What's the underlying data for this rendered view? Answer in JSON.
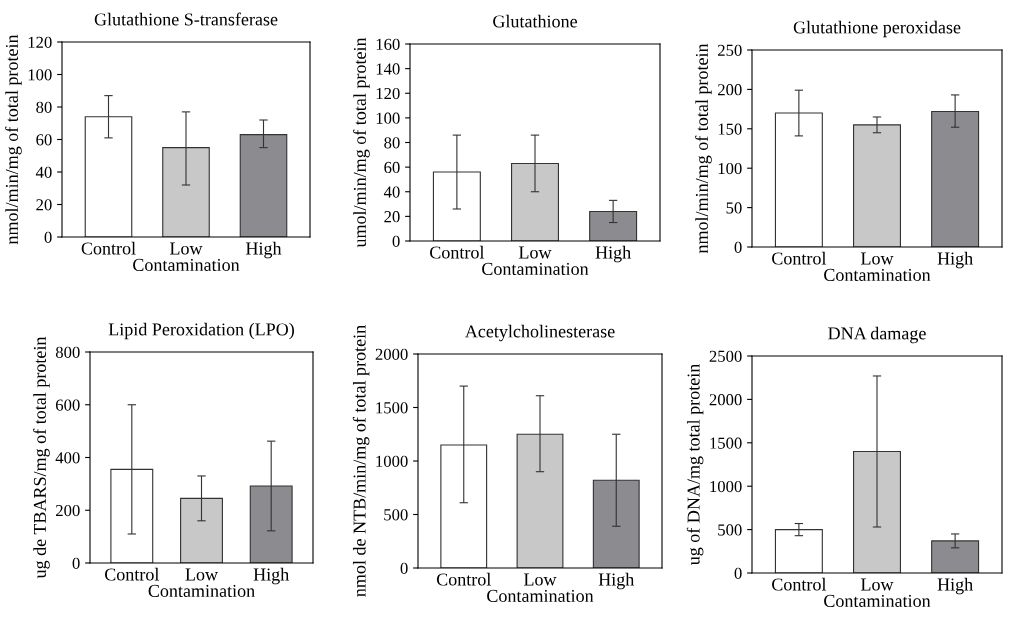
{
  "chart_data": [
    {
      "type": "bar",
      "title": "Glutathione S-transferase",
      "xlabel": "Contamination",
      "ylabel": "nmol/min/mg of total protein",
      "categories": [
        "Control",
        "Low",
        "High"
      ],
      "values": [
        74,
        55,
        63
      ],
      "colors": [
        "#ffffff",
        "#c8c8c8",
        "#8c8c90"
      ],
      "errors": [
        [
          61,
          87
        ],
        [
          32,
          77
        ],
        [
          55,
          72
        ]
      ],
      "ylim": [
        0,
        120
      ],
      "yticks": [
        0,
        20,
        40,
        60,
        80,
        100,
        120
      ],
      "grid": false,
      "legend": false
    },
    {
      "type": "bar",
      "title": "Glutathione",
      "xlabel": "Contamination",
      "ylabel": "umol/min/mg of total protein",
      "categories": [
        "Control",
        "Low",
        "High"
      ],
      "values": [
        56,
        63,
        24
      ],
      "colors": [
        "#ffffff",
        "#c8c8c8",
        "#8c8c90"
      ],
      "errors": [
        [
          26,
          86
        ],
        [
          40,
          86
        ],
        [
          15,
          33
        ]
      ],
      "ylim": [
        0,
        160
      ],
      "yticks": [
        0,
        20,
        40,
        60,
        80,
        100,
        120,
        140,
        160
      ],
      "grid": false,
      "legend": false
    },
    {
      "type": "bar",
      "title": "Glutathione peroxidase",
      "xlabel": "Contamination",
      "ylabel": "nmol/min/mg of total protein",
      "categories": [
        "Control",
        "Low",
        "High"
      ],
      "values": [
        170,
        155,
        172
      ],
      "colors": [
        "#ffffff",
        "#c8c8c8",
        "#8c8c90"
      ],
      "errors": [
        [
          141,
          199
        ],
        [
          145,
          165
        ],
        [
          152,
          193
        ]
      ],
      "ylim": [
        0,
        250
      ],
      "yticks": [
        0,
        50,
        100,
        150,
        200,
        250
      ],
      "grid": false,
      "legend": false
    },
    {
      "type": "bar",
      "title": "Lipid Peroxidation (LPO)",
      "xlabel": "Contamination",
      "ylabel": "ug de TBARS/mg of total protein",
      "categories": [
        "Control",
        "Low",
        "High"
      ],
      "values": [
        355,
        245,
        292
      ],
      "colors": [
        "#ffffff",
        "#c8c8c8",
        "#8c8c90"
      ],
      "errors": [
        [
          110,
          600
        ],
        [
          160,
          330
        ],
        [
          122,
          462
        ]
      ],
      "ylim": [
        0,
        800
      ],
      "yticks": [
        0,
        200,
        400,
        600,
        800
      ],
      "grid": false,
      "legend": false
    },
    {
      "type": "bar",
      "title": "Acetylcholinesterase",
      "xlabel": "Contamination",
      "ylabel": "nmol de NTB/min/mg of total protein",
      "categories": [
        "Control",
        "Low",
        "High"
      ],
      "values": [
        1150,
        1250,
        820
      ],
      "colors": [
        "#ffffff",
        "#c8c8c8",
        "#8c8c90"
      ],
      "errors": [
        [
          610,
          1700
        ],
        [
          900,
          1610
        ],
        [
          390,
          1250
        ]
      ],
      "ylim": [
        0,
        2000
      ],
      "yticks": [
        0,
        500,
        1000,
        1500,
        2000
      ],
      "grid": false,
      "legend": false
    },
    {
      "type": "bar",
      "title": "DNA damage",
      "xlabel": "Contamination",
      "ylabel": "ug of DNA/mg total protein",
      "categories": [
        "Control",
        "Low",
        "High"
      ],
      "values": [
        500,
        1400,
        370
      ],
      "colors": [
        "#ffffff",
        "#c8c8c8",
        "#8c8c90"
      ],
      "errors": [
        [
          430,
          570
        ],
        [
          530,
          2270
        ],
        [
          290,
          450
        ]
      ],
      "ylim": [
        0,
        2500
      ],
      "yticks": [
        0,
        500,
        1000,
        1500,
        2000,
        2500
      ],
      "grid": false,
      "legend": false
    }
  ]
}
